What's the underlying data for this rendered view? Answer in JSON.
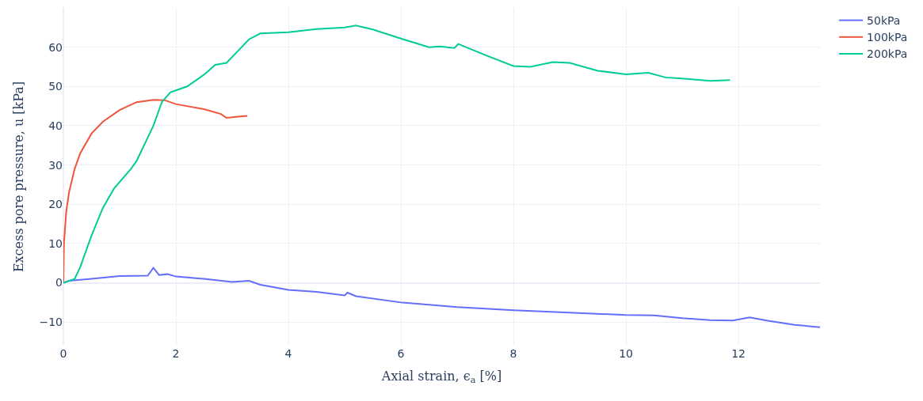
{
  "chart_data": {
    "type": "line",
    "xlabel": "Axial strain, ϵ$_{a}$ [%]",
    "ylabel": "Excess pore pressure, u [kPa]",
    "xlim": [
      0,
      13.45
    ],
    "ylim": [
      -16,
      70
    ],
    "xticks": [
      0,
      2,
      4,
      6,
      8,
      10,
      12
    ],
    "yticks": [
      -10,
      0,
      10,
      20,
      30,
      40,
      50,
      60
    ],
    "grid": true,
    "legend": "top right",
    "marker": "none",
    "line_style": "solid",
    "series": [
      {
        "name": "50kPa",
        "color": "#636efa",
        "x": [
          0,
          0.1,
          0.5,
          1,
          1.5,
          1.6,
          1.7,
          1.85,
          2,
          2.5,
          3,
          3.3,
          3.5,
          4,
          4.5,
          5,
          5.05,
          5.2,
          6,
          7,
          8,
          9,
          10,
          10.5,
          11,
          11.5,
          11.9,
          12.2,
          12.5,
          13,
          13.45
        ],
        "values": [
          0,
          0.5,
          1,
          1.7,
          1.8,
          3.8,
          2,
          2.2,
          1.6,
          1,
          0.2,
          0.5,
          -0.5,
          -1.8,
          -2.3,
          -3.2,
          -2.5,
          -3.4,
          -5,
          -6.2,
          -7,
          -7.6,
          -8.2,
          -8.3,
          -9,
          -9.5,
          -9.6,
          -8.8,
          -9.6,
          -10.7,
          -11.3
        ]
      },
      {
        "name": "100kPa",
        "color": "#ef553b",
        "x": [
          0,
          0.01,
          0.05,
          0.1,
          0.2,
          0.3,
          0.5,
          0.7,
          1,
          1.3,
          1.6,
          1.8,
          2,
          2.5,
          2.8,
          2.9,
          3.1,
          3.27
        ],
        "values": [
          0,
          10,
          18,
          23,
          29,
          33,
          38,
          41,
          44,
          46,
          46.6,
          46.5,
          45.5,
          44.2,
          43,
          42,
          42.3,
          42.5
        ]
      },
      {
        "name": "200kPa",
        "color": "#00cc96",
        "x": [
          0,
          0.2,
          0.3,
          0.5,
          0.7,
          0.9,
          1.2,
          1.3,
          1.5,
          1.6,
          1.75,
          1.9,
          2,
          2.2,
          2.5,
          2.7,
          2.9,
          3.1,
          3.3,
          3.5,
          4,
          4.5,
          5,
          5.2,
          5.5,
          6,
          6.5,
          6.7,
          6.95,
          7.02,
          7.5,
          8,
          8.3,
          8.7,
          9,
          9.5,
          10,
          10.4,
          10.7,
          11,
          11.5,
          11.85
        ],
        "values": [
          0,
          1,
          4,
          12,
          19,
          24,
          29,
          31,
          37,
          40,
          46,
          48.5,
          49,
          50,
          53,
          55.5,
          56,
          59,
          62,
          63.5,
          63.8,
          64.6,
          65,
          65.5,
          64.5,
          62.2,
          60,
          60.2,
          59.8,
          60.8,
          58,
          55.2,
          55,
          56.2,
          56,
          54,
          53.1,
          53.5,
          52.3,
          52,
          51.4,
          51.6
        ]
      }
    ]
  }
}
